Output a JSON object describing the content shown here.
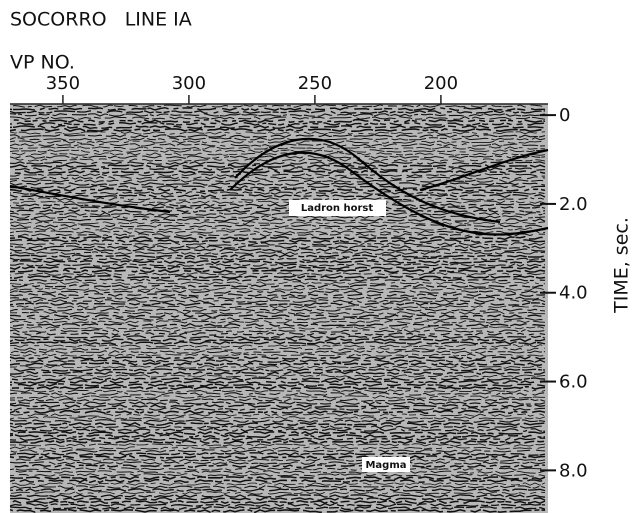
{
  "title": "SOCORRO   LINE IA",
  "x_axis": {
    "label": "VP NO.",
    "lim": [
      371,
      157.5
    ],
    "ticks": [
      350,
      300,
      250,
      200
    ]
  },
  "y_axis": {
    "label": "TIME, sec.",
    "lim": [
      -0.25,
      8.96
    ],
    "ticks": [
      0,
      {
        "value": 2,
        "label": "2.0"
      },
      {
        "value": 4,
        "label": "4.0"
      },
      {
        "value": 6,
        "label": "6.0"
      },
      {
        "value": 8,
        "label": "8.0"
      }
    ]
  },
  "annotations": [
    "Ladron horst",
    "Magma"
  ]
}
